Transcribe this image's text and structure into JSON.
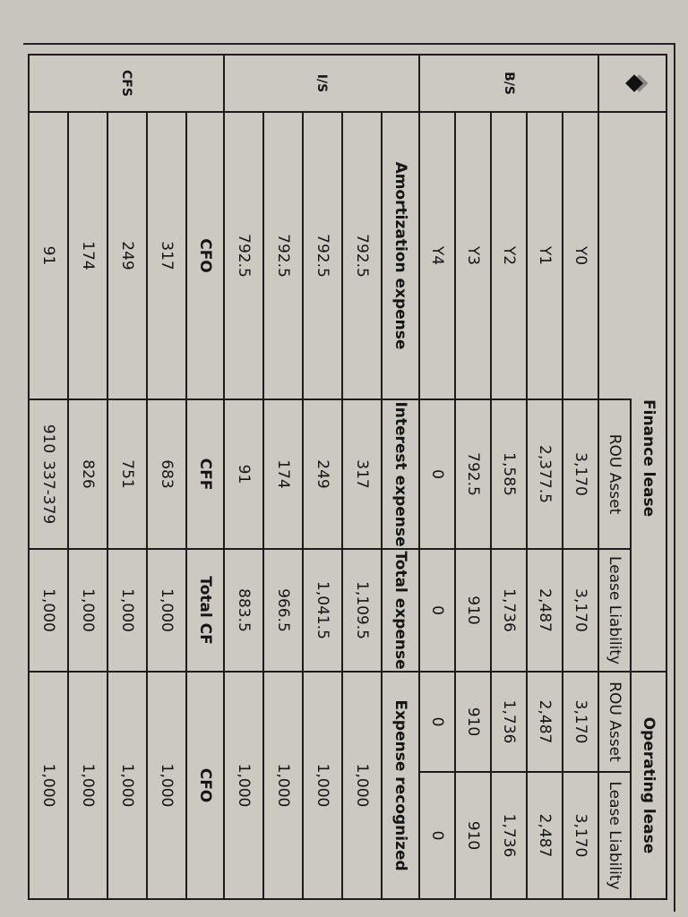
{
  "header": {
    "finance_lease": "Finance lease",
    "operating_lease": "Operating lease",
    "rou_asset": "ROU Asset",
    "lease_liability": "Lease Liability"
  },
  "sections": {
    "bs": "B/S",
    "is": "I/S",
    "cfs": "CFS"
  },
  "bs_rows": [
    {
      "year": "Y0",
      "fin_rou": "3,170",
      "fin_ll": "3,170",
      "op_rou": "3,170",
      "op_ll": "3,170"
    },
    {
      "year": "Y1",
      "fin_rou": "2,377.5",
      "fin_ll": "2,487",
      "op_rou": "2,487",
      "op_ll": "2,487"
    },
    {
      "year": "Y2",
      "fin_rou": "1,585",
      "fin_ll": "1,736",
      "op_rou": "1,736",
      "op_ll": "1,736"
    },
    {
      "year": "Y3",
      "fin_rou": "792.5",
      "fin_ll": "910",
      "op_rou": "910",
      "op_ll": "910"
    },
    {
      "year": "Y4",
      "fin_rou": "0",
      "fin_ll": "0",
      "op_rou": "0",
      "op_ll": "0"
    }
  ],
  "is_headers": [
    "Amortization expense",
    "Interest expense",
    "Total expense",
    "Expense recognized"
  ],
  "is_rows": [
    [
      "792.5",
      "317",
      "1,109.5",
      "1,000"
    ],
    [
      "792.5",
      "249",
      "1,041.5",
      "1,000"
    ],
    [
      "792.5",
      "174",
      "966.5",
      "1,000"
    ],
    [
      "792.5",
      "91",
      "883.5",
      "1,000"
    ]
  ],
  "cfs_headers": [
    "CFO",
    "CFF",
    "Total CF",
    "CFO"
  ],
  "cfs_rows": [
    [
      "317",
      "683",
      "1,000",
      "1,000"
    ],
    [
      "249",
      "751",
      "1,000",
      "1,000"
    ],
    [
      "174",
      "826",
      "1,000",
      "1,000"
    ],
    [
      "91",
      "910",
      "1,000",
      "1,000"
    ]
  ],
  "handwritten_note": "337-379"
}
